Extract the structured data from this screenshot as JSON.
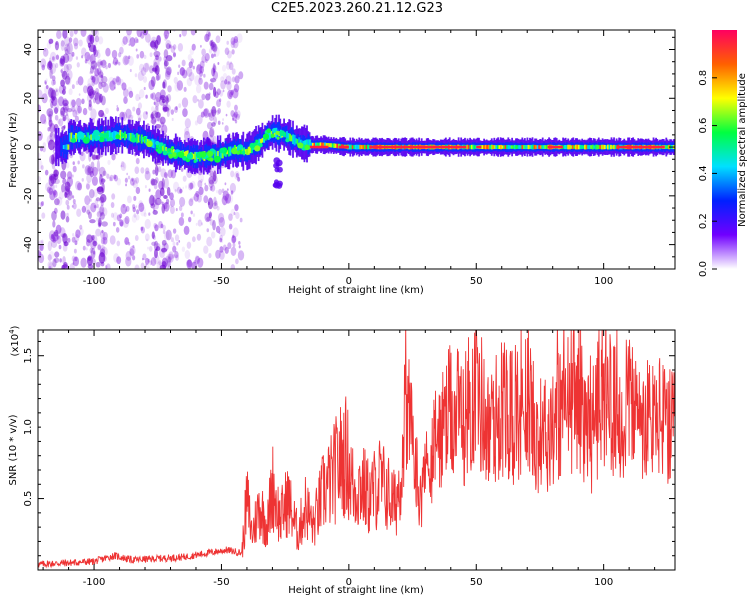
{
  "title": "C2E5.2023.260.21.12.G23",
  "chart_data": [
    {
      "type": "heatmap",
      "xlabel": "Height of straight line (km)",
      "ylabel": "Frequency (Hz)",
      "xlim": [
        -122,
        128
      ],
      "ylim": [
        -50,
        48
      ],
      "x_ticks": [
        -100,
        -50,
        0,
        50,
        100
      ],
      "y_ticks": [
        -40,
        -20,
        0,
        20,
        40
      ],
      "colorbar": {
        "label": "Normalized spectral amplitude",
        "range": [
          0.0,
          1.0
        ],
        "ticks": [
          "0.0",
          "0.2",
          "0.4",
          "0.6",
          "0.8"
        ],
        "tick_values": [
          0.0,
          0.2,
          0.4,
          0.6,
          0.8
        ],
        "colors": [
          "#ffffff",
          "#7000ff",
          "#0020ff",
          "#00e0ff",
          "#00ff40",
          "#ffff00",
          "#ff6000",
          "#ff0060"
        ]
      },
      "ridge_center": [
        [
          -110,
          4
        ],
        [
          -100,
          4
        ],
        [
          -90,
          5
        ],
        [
          -80,
          3
        ],
        [
          -70,
          -2
        ],
        [
          -60,
          -4
        ],
        [
          -50,
          -3
        ],
        [
          -45,
          -1
        ],
        [
          -40,
          -2
        ],
        [
          -35,
          2
        ],
        [
          -30,
          6
        ],
        [
          -25,
          5
        ],
        [
          -20,
          2
        ],
        [
          -15,
          1
        ],
        [
          -10,
          1
        ],
        [
          0,
          0
        ],
        [
          20,
          0
        ],
        [
          50,
          0
        ],
        [
          80,
          0
        ],
        [
          100,
          0
        ],
        [
          128,
          0
        ]
      ],
      "grid": false
    },
    {
      "type": "line",
      "xlabel": "Height of straight line (km)",
      "ylabel": "SNR (10 * v/v)",
      "y_scale_label": "(x10^4)",
      "xlim": [
        -122,
        128
      ],
      "ylim": [
        0,
        1.68
      ],
      "x_ticks": [
        -100,
        -50,
        0,
        50,
        100
      ],
      "y_ticks": [
        0.5,
        1.0,
        1.5
      ],
      "color": "#ee3333",
      "x": [
        -122,
        -110,
        -100,
        -92,
        -85,
        -75,
        -65,
        -55,
        -48,
        -42,
        -40,
        -38,
        -35,
        -32,
        -30,
        -27,
        -24,
        -20,
        -17,
        -14,
        -10,
        -7,
        -4,
        -1,
        2,
        5,
        8,
        12,
        15,
        18,
        21,
        23,
        25,
        28,
        32,
        36,
        40,
        45,
        50,
        55,
        60,
        65,
        70,
        75,
        80,
        85,
        90,
        95,
        100,
        105,
        110,
        115,
        120,
        125,
        128
      ],
      "values": [
        0.04,
        0.05,
        0.06,
        0.1,
        0.07,
        0.08,
        0.09,
        0.12,
        0.14,
        0.12,
        0.5,
        0.25,
        0.45,
        0.3,
        0.6,
        0.35,
        0.5,
        0.25,
        0.45,
        0.3,
        0.55,
        0.62,
        0.75,
        0.8,
        0.55,
        0.6,
        0.5,
        0.62,
        0.55,
        0.45,
        0.7,
        1.15,
        0.9,
        0.5,
        0.8,
        0.95,
        1.1,
        1.05,
        1.3,
        0.95,
        1.15,
        1.05,
        1.2,
        0.9,
        1.05,
        1.15,
        1.25,
        0.95,
        1.3,
        1.05,
        1.2,
        0.95,
        1.1,
        1.0,
        0.95
      ]
    }
  ]
}
